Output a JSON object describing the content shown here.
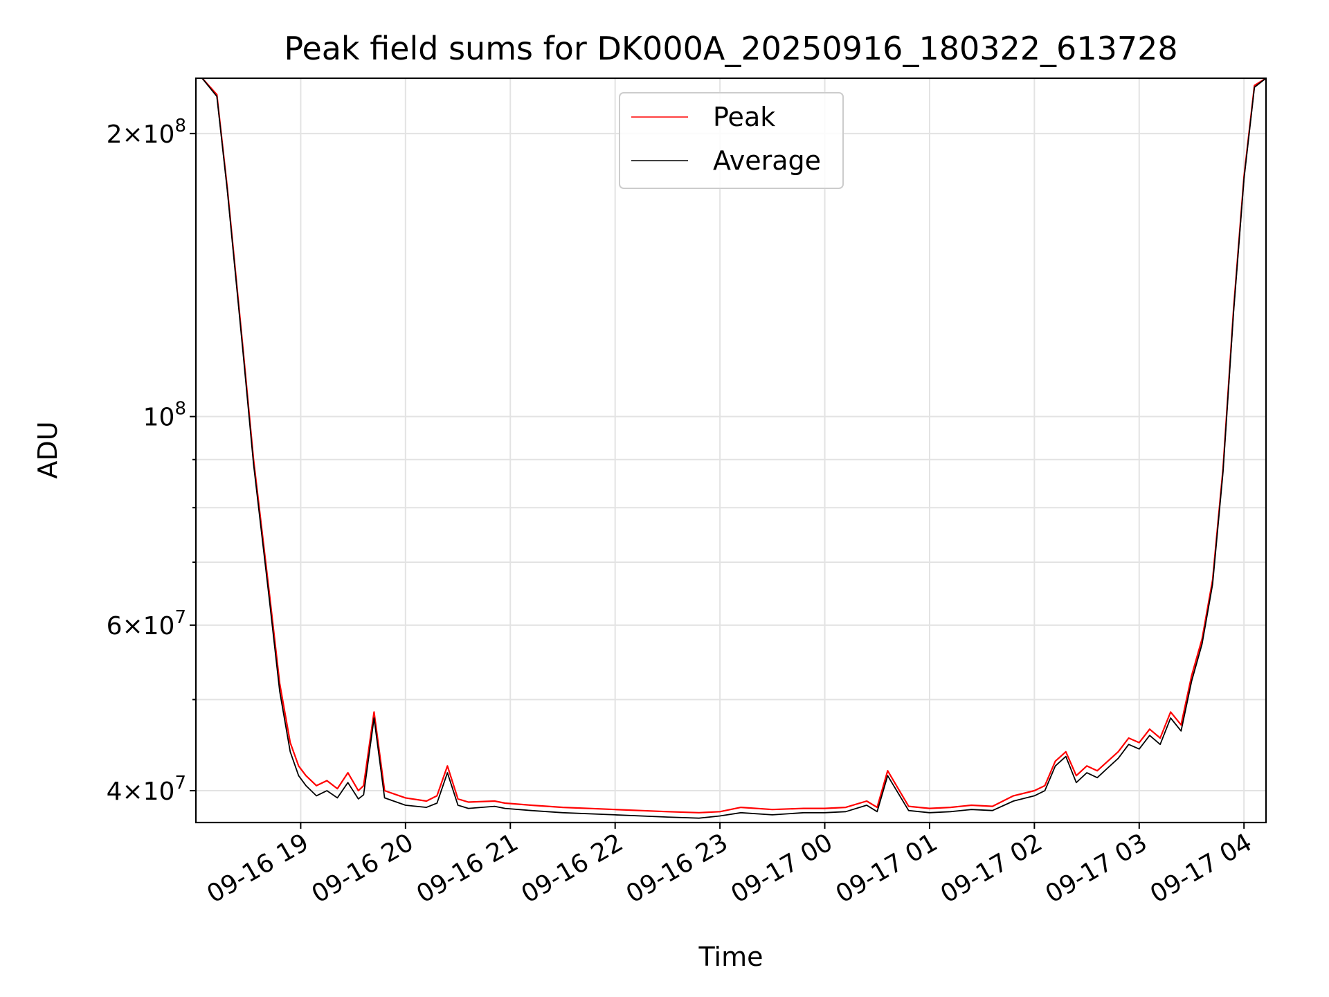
{
  "chart_data": {
    "type": "line",
    "title": "Peak field sums for DK000A_20250916_180322_613728",
    "xlabel": "Time",
    "ylabel": "ADU",
    "y_scale": "log",
    "ylim": [
      37000000,
      229000000
    ],
    "xlim_hours": [
      18.06,
      4.21
    ],
    "grid": true,
    "legend_position": "upper-center",
    "x_tick_labels": [
      "09-16 19",
      "09-16 20",
      "09-16 21",
      "09-16 22",
      "09-16 23",
      "09-17 00",
      "09-17 01",
      "09-17 02",
      "09-17 03",
      "09-17 04"
    ],
    "x_tick_hours_from_start": [
      1,
      2,
      3,
      4,
      5,
      6,
      7,
      8,
      9,
      10
    ],
    "y_major_ticks": [
      {
        "value": 40000000,
        "mantissa": "4",
        "exponent": "7"
      },
      {
        "value": 60000000,
        "mantissa": "6",
        "exponent": "7"
      },
      {
        "value": 100000000,
        "mantissa": "",
        "exponent": "8"
      },
      {
        "value": 200000000,
        "mantissa": "2",
        "exponent": "8"
      }
    ],
    "y_minor_ticks": [
      50000000,
      70000000,
      80000000,
      90000000
    ],
    "hours_from_1800": [
      0.06,
      0.2,
      0.3,
      0.45,
      0.55,
      0.7,
      0.8,
      0.9,
      0.98,
      1.05,
      1.15,
      1.25,
      1.35,
      1.45,
      1.55,
      1.6,
      1.7,
      1.8,
      2.0,
      2.2,
      2.3,
      2.4,
      2.5,
      2.6,
      2.85,
      2.95,
      3.2,
      3.5,
      4.0,
      4.5,
      4.8,
      5.0,
      5.2,
      5.5,
      5.8,
      6.0,
      6.2,
      6.4,
      6.5,
      6.6,
      6.8,
      7.0,
      7.2,
      7.4,
      7.6,
      7.8,
      8.0,
      8.1,
      8.2,
      8.3,
      8.4,
      8.5,
      8.6,
      8.7,
      8.8,
      8.9,
      9.0,
      9.1,
      9.2,
      9.3,
      9.4,
      9.5,
      9.6,
      9.7,
      9.8,
      9.9,
      10.0,
      10.1,
      10.21
    ],
    "series": [
      {
        "name": "Peak",
        "color": "#ff0000",
        "values": [
          229000000,
          220000000,
          175000000,
          118000000,
          90000000,
          65000000,
          52000000,
          45000000,
          42500000,
          41500000,
          40500000,
          41000000,
          40200000,
          41800000,
          40000000,
          40500000,
          48500000,
          40000000,
          39300000,
          39000000,
          39500000,
          42500000,
          39200000,
          38900000,
          39000000,
          38800000,
          38600000,
          38400000,
          38200000,
          38000000,
          37900000,
          38000000,
          38400000,
          38200000,
          38300000,
          38300000,
          38400000,
          39000000,
          38400000,
          42000000,
          38500000,
          38300000,
          38400000,
          38600000,
          38500000,
          39500000,
          40000000,
          40500000,
          43000000,
          44000000,
          41500000,
          42500000,
          42000000,
          43000000,
          44000000,
          45500000,
          45000000,
          46500000,
          45500000,
          48500000,
          47000000,
          53000000,
          58000000,
          67000000,
          88000000,
          130000000,
          180000000,
          225000000,
          229000000
        ]
      },
      {
        "name": "Average",
        "color": "#000000",
        "values": [
          229000000,
          219000000,
          174000000,
          117000000,
          89000000,
          64000000,
          51000000,
          44000000,
          41500000,
          40500000,
          39500000,
          40000000,
          39300000,
          40800000,
          39200000,
          39600000,
          47800000,
          39300000,
          38600000,
          38400000,
          38800000,
          41800000,
          38600000,
          38300000,
          38500000,
          38300000,
          38100000,
          37900000,
          37700000,
          37500000,
          37400000,
          37600000,
          37900000,
          37700000,
          37900000,
          37900000,
          38000000,
          38600000,
          38000000,
          41500000,
          38100000,
          37900000,
          38000000,
          38200000,
          38100000,
          39000000,
          39500000,
          40000000,
          42500000,
          43500000,
          40800000,
          41800000,
          41300000,
          42300000,
          43300000,
          44800000,
          44300000,
          45800000,
          44800000,
          47800000,
          46300000,
          52300000,
          57300000,
          66300000,
          87300000,
          129000000,
          179000000,
          224000000,
          229000000
        ]
      }
    ]
  }
}
